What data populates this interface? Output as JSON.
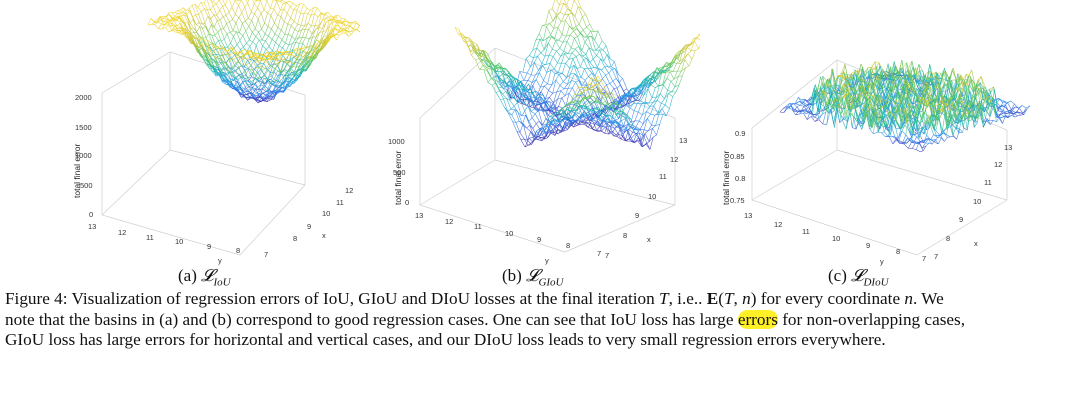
{
  "figure": {
    "panels": [
      {
        "id": "iou",
        "label_prefix": "(a)",
        "loss_symbol": "𝓛",
        "loss_sub": "IoU",
        "zlabel": "total final error",
        "z_ticks": [
          "0",
          "500",
          "1000",
          "1500",
          "2000"
        ],
        "y_ticks": [
          "13",
          "12",
          "11",
          "10",
          "9",
          "8",
          "7"
        ],
        "x_ticks": [
          "8",
          "9",
          "10",
          "11",
          "12"
        ],
        "xlabel": "x",
        "ylabel": "y"
      },
      {
        "id": "giou",
        "label_prefix": "(b)",
        "loss_symbol": "𝓛",
        "loss_sub": "GIoU",
        "zlabel": "total final error",
        "z_ticks": [
          "0",
          "500",
          "1000"
        ],
        "y_ticks": [
          "13",
          "12",
          "11",
          "10",
          "9",
          "8",
          "7"
        ],
        "x_ticks": [
          "7",
          "8",
          "9",
          "10",
          "11",
          "12",
          "13"
        ],
        "xlabel": "x",
        "ylabel": "y"
      },
      {
        "id": "diou",
        "label_prefix": "(c)",
        "loss_symbol": "𝓛",
        "loss_sub": "DIoU",
        "zlabel": "total final error",
        "z_ticks": [
          "0.75",
          "0.8",
          "0.85",
          "0.9"
        ],
        "y_ticks": [
          "13",
          "12",
          "11",
          "10",
          "9",
          "8",
          "7"
        ],
        "x_ticks": [
          "7",
          "8",
          "9",
          "10",
          "11",
          "12",
          "13"
        ],
        "xlabel": "x",
        "ylabel": "y"
      }
    ],
    "caption": {
      "line1_a": "Figure 4: Visualization of regression errors of IoU, GIoU and DIoU losses at the final iteration ",
      "line1_T": "T",
      "line1_b": ", i.e.. ",
      "line1_E": "E",
      "line1_c": "(",
      "line1_T2": "T",
      "line1_d": ", ",
      "line1_n": "n",
      "line1_e": ") for every coordinate ",
      "line1_n2": "n",
      "line1_f": ". We",
      "line2_a": "note that the basins in (a) and (b) correspond to good regression cases. One can see that IoU loss has large ",
      "line2_hl": "errors",
      "line2_b": " for non-overlapping cases,",
      "line3": "GIoU loss has large errors for horizontal and vertical cases, and our DIoU loss leads to very small regression errors everywhere."
    },
    "colormap": [
      "#3e26a8",
      "#2e83f2",
      "#15b1c2",
      "#5bc862",
      "#cbc237",
      "#f9d923"
    ]
  }
}
